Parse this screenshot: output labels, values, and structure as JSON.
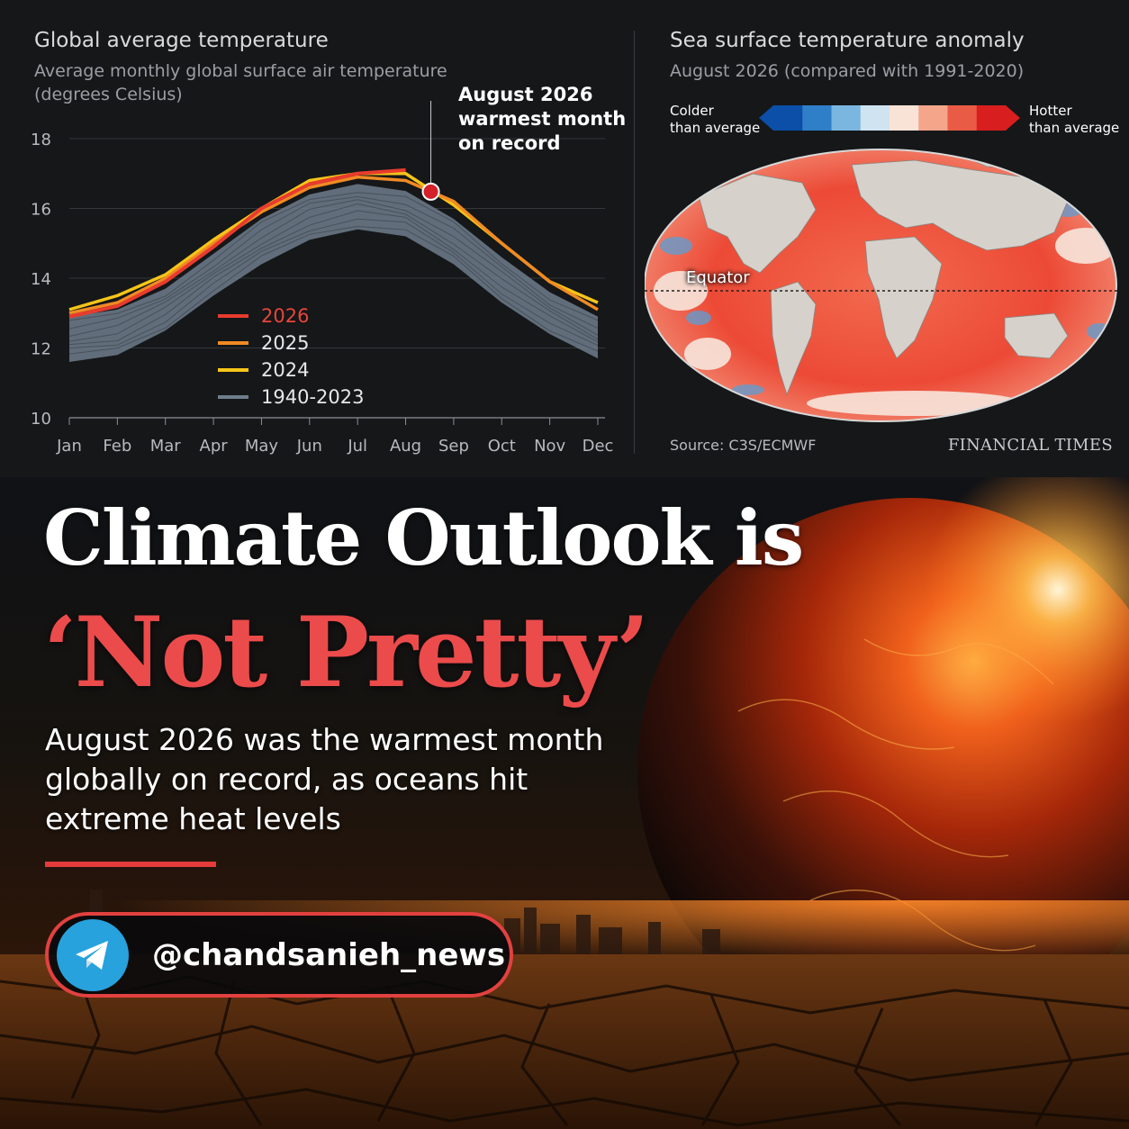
{
  "left_panel": {
    "title": "Global average temperature",
    "subtitle_line1": "Average monthly global surface air temperature",
    "subtitle_line2": "(degrees Celsius)",
    "annotation": [
      "August 2026",
      "warmest month",
      "on record"
    ]
  },
  "right_panel": {
    "title": "Sea surface temperature anomaly",
    "subtitle": "August 2026 (compared with 1991-2020)",
    "colder_label": [
      "Colder",
      "than average"
    ],
    "hotter_label": [
      "Hotter",
      "than average"
    ],
    "scale_colors": [
      "#0b4fa8",
      "#2f7fc8",
      "#7ab6e0",
      "#cfe3f1",
      "#f8e3d6",
      "#f4a58a",
      "#ea5b45",
      "#d81e1e"
    ],
    "equator_label": "Equator",
    "source": "Source: C3S/ECMWF",
    "brand": "FINANCIAL TIMES"
  },
  "chart_data": {
    "type": "line",
    "title": "Global average temperature",
    "subtitle": "Average monthly global surface air temperature (degrees Celsius)",
    "xlabel": "",
    "ylabel": "",
    "x": [
      "Jan",
      "Feb",
      "Mar",
      "Apr",
      "May",
      "Jun",
      "Jul",
      "Aug",
      "Sep",
      "Oct",
      "Nov",
      "Dec"
    ],
    "ylim": [
      10,
      18
    ],
    "yticks": [
      10,
      12,
      14,
      16,
      18
    ],
    "grid": true,
    "legend_position": "center-left",
    "series": [
      {
        "name": "2026",
        "color": "#e83b2e",
        "values": [
          12.9,
          13.2,
          13.9,
          14.9,
          16.0,
          16.7,
          17.0,
          17.1,
          null,
          null,
          null,
          null
        ]
      },
      {
        "name": "2025",
        "color": "#f08a24",
        "values": [
          13.0,
          13.3,
          14.0,
          15.0,
          15.9,
          16.6,
          16.9,
          16.8,
          16.2,
          15.0,
          13.9,
          13.1
        ]
      },
      {
        "name": "2024",
        "color": "#f5c518",
        "values": [
          13.1,
          13.5,
          14.1,
          15.1,
          16.0,
          16.8,
          17.0,
          17.0,
          16.1,
          15.0,
          13.9,
          13.3
        ]
      },
      {
        "name": "1940-2023",
        "color": "#6f7d8c",
        "band_min": [
          11.6,
          11.8,
          12.5,
          13.5,
          14.4,
          15.1,
          15.4,
          15.2,
          14.4,
          13.3,
          12.4,
          11.7
        ],
        "band_max": [
          12.9,
          13.1,
          13.7,
          14.7,
          15.7,
          16.4,
          16.7,
          16.5,
          15.7,
          14.6,
          13.6,
          12.9
        ]
      }
    ],
    "annotation": {
      "x": "Aug",
      "y": 17.1,
      "text": "August 2026 warmest month on record"
    }
  },
  "hero": {
    "headline_line1": "Climate Outlook is",
    "headline_line2": "‘Not Pretty’",
    "summary": "August 2026 was the warmest month globally on record, as oceans hit extreme heat levels",
    "handle": "@chandsanieh_news",
    "accent_color": "#e53b3b"
  }
}
